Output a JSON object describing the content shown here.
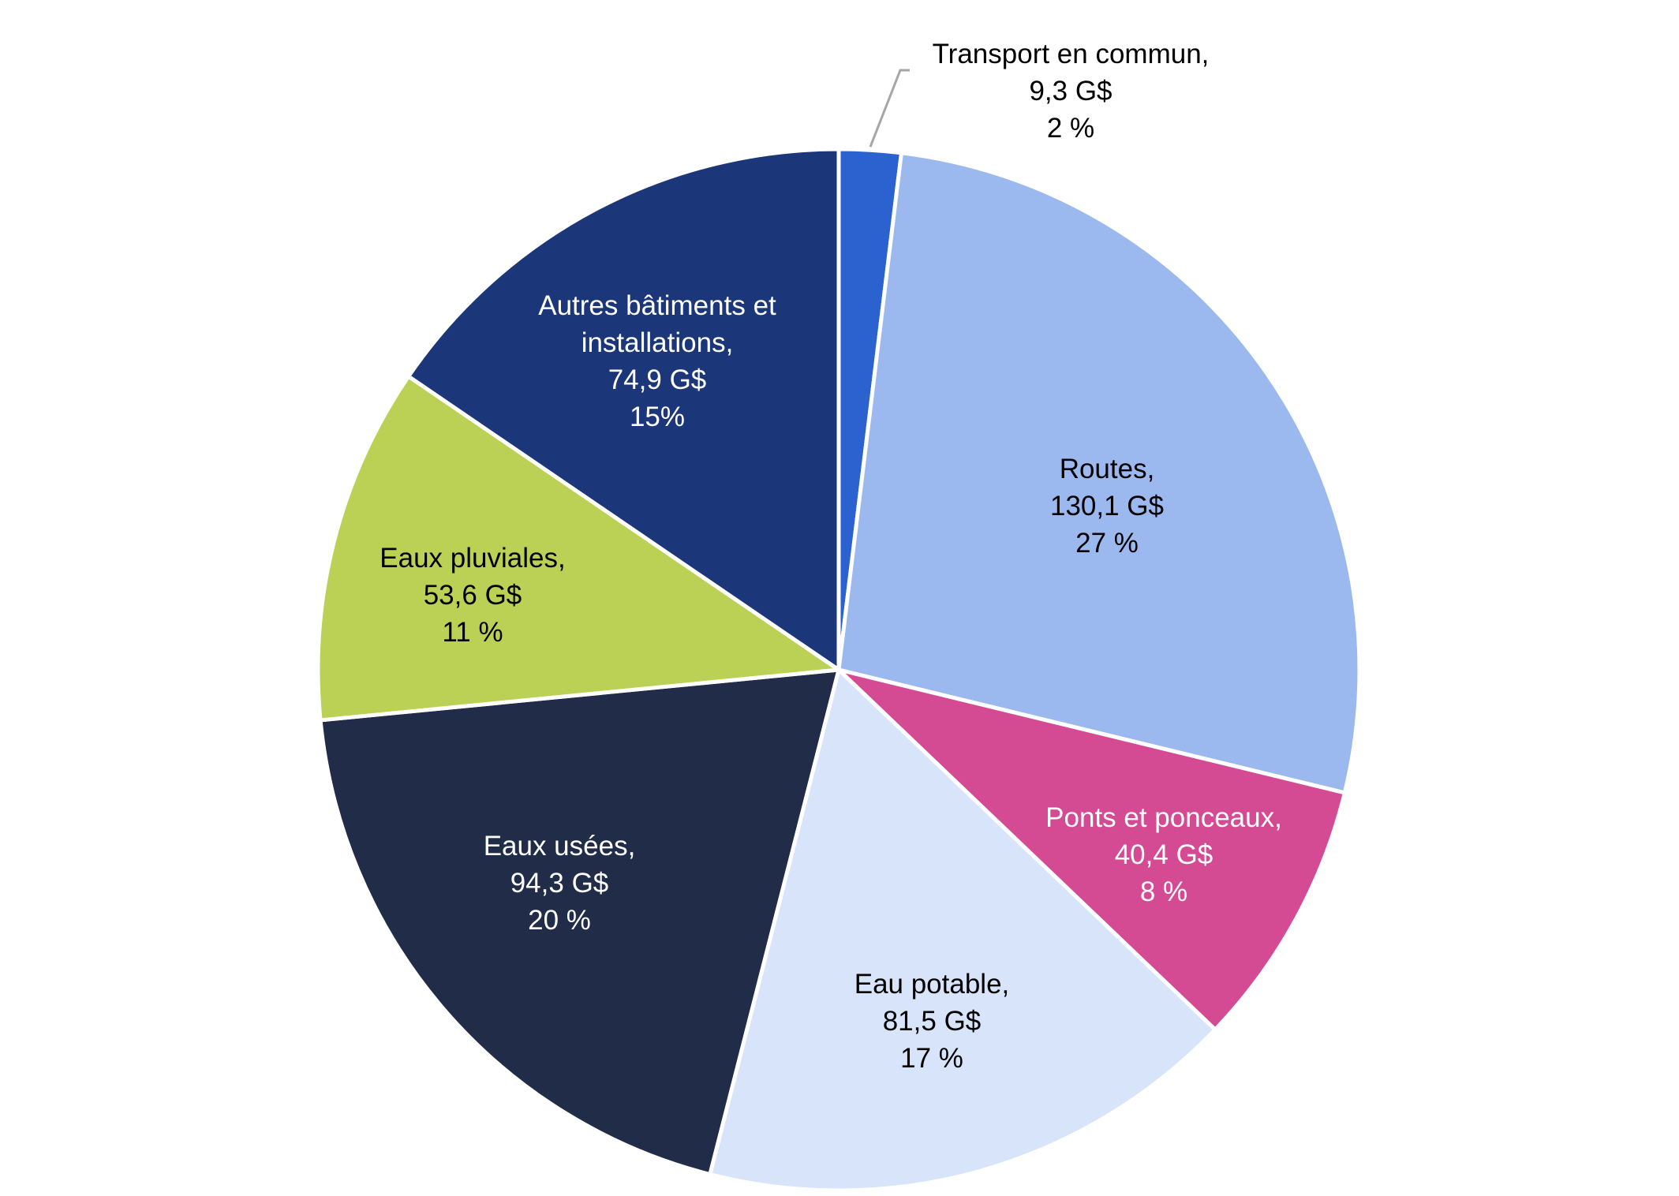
{
  "chart_data": {
    "type": "pie",
    "title": "",
    "slices": [
      {
        "name": "Transport en commun,",
        "value": 9.3,
        "value_label": "9,3 G$",
        "percent_label": "2 %",
        "color": "#2B62D0",
        "label_color": "#000000",
        "label_lines": [
          "Transport en commun,"
        ]
      },
      {
        "name": "Routes,",
        "value": 130.1,
        "value_label": "130,1 G$",
        "percent_label": "27 %",
        "color": "#9CB9EF",
        "label_color": "#000000",
        "label_lines": [
          "Routes,"
        ]
      },
      {
        "name": "Ponts et ponceaux,",
        "value": 40.4,
        "value_label": "40,4 G$",
        "percent_label": "8 %",
        "color": "#D44B94",
        "label_color": "#FFFFFF",
        "label_lines": [
          "Ponts et ponceaux,"
        ]
      },
      {
        "name": "Eau potable,",
        "value": 81.5,
        "value_label": "81,5 G$",
        "percent_label": "17 %",
        "color": "#D8E4F9",
        "label_color": "#000000",
        "label_lines": [
          "Eau potable,"
        ]
      },
      {
        "name": "Eaux usées,",
        "value": 94.3,
        "value_label": "94,3 G$",
        "percent_label": "20 %",
        "color": "#202C48",
        "label_color": "#FFFFFF",
        "label_lines": [
          "Eaux usées,"
        ]
      },
      {
        "name": "Eaux pluviales,",
        "value": 53.6,
        "value_label": "53,6 G$",
        "percent_label": "11 %",
        "color": "#BBD155",
        "label_color": "#000000",
        "label_lines": [
          "Eaux pluviales,"
        ]
      },
      {
        "name": "Autres bâtiments et installations,",
        "value": 74.9,
        "value_label": "74,9 G$",
        "percent_label": "15%",
        "color": "#1C3779",
        "label_color": "#FFFFFF",
        "label_lines": [
          "Autres bâtiments et",
          "installations,"
        ]
      }
    ]
  }
}
